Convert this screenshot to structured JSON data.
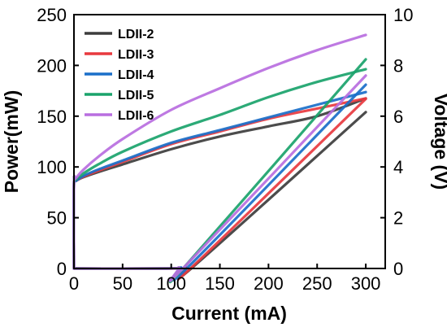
{
  "chart_data": {
    "type": "line",
    "xlabel": "Current (mA)",
    "ylabel": "Power(mW)",
    "y2label": "Voltage (V)",
    "xlim": [
      0,
      320
    ],
    "ylim": [
      0,
      250
    ],
    "y2lim": [
      0,
      10
    ],
    "xticks": [
      0,
      50,
      100,
      150,
      200,
      250,
      300
    ],
    "yticks": [
      0,
      50,
      100,
      150,
      200,
      250
    ],
    "y2ticks": [
      0,
      2,
      4,
      6,
      8,
      10
    ],
    "grid": false,
    "legend_position": "top-left",
    "series": [
      {
        "name": "LDII-2",
        "color": "#3d3d3d",
        "power": {
          "x": [
            0,
            100,
            115,
            123,
            300
          ],
          "y": [
            0,
            0,
            1,
            2,
            154
          ]
        },
        "voltage": {
          "x": [
            0,
            2,
            10,
            25,
            50,
            100,
            150,
            200,
            250,
            300
          ],
          "y": [
            3.35,
            3.45,
            3.6,
            3.8,
            4.1,
            4.7,
            5.2,
            5.6,
            6.0,
            6.7
          ]
        }
      },
      {
        "name": "LDII-3",
        "color": "#e8393f",
        "power": {
          "x": [
            0,
            100,
            115,
            122,
            300
          ],
          "y": [
            0,
            0,
            1,
            2,
            167
          ]
        },
        "voltage": {
          "x": [
            0,
            2,
            10,
            25,
            50,
            100,
            150,
            200,
            250,
            300
          ],
          "y": [
            3.35,
            3.45,
            3.62,
            3.85,
            4.2,
            4.9,
            5.4,
            5.9,
            6.3,
            6.7
          ]
        }
      },
      {
        "name": "LDII-4",
        "color": "#1a6fc9",
        "power": {
          "x": [
            0,
            95,
            110,
            118,
            300
          ],
          "y": [
            0,
            0,
            1,
            2,
            181
          ]
        },
        "voltage": {
          "x": [
            0,
            2,
            10,
            25,
            50,
            100,
            150,
            200,
            250,
            300
          ],
          "y": [
            3.35,
            3.45,
            3.65,
            3.9,
            4.25,
            4.95,
            5.45,
            5.95,
            6.45,
            6.95
          ]
        }
      },
      {
        "name": "LDII-5",
        "color": "#1aa36b",
        "power": {
          "x": [
            0,
            95,
            108,
            114,
            300
          ],
          "y": [
            0,
            0,
            1,
            2,
            206
          ]
        },
        "voltage": {
          "x": [
            0,
            2,
            10,
            25,
            50,
            100,
            150,
            200,
            250,
            300
          ],
          "y": [
            3.35,
            3.5,
            3.75,
            4.1,
            4.6,
            5.4,
            6.05,
            6.75,
            7.35,
            7.85
          ]
        }
      },
      {
        "name": "LDII-6",
        "color": "#b96ee0",
        "power": {
          "x": [
            0,
            95,
            108,
            114,
            300
          ],
          "y": [
            0,
            0,
            1,
            2,
            190
          ]
        },
        "voltage": {
          "x": [
            0,
            2,
            10,
            25,
            50,
            100,
            150,
            200,
            250,
            300
          ],
          "y": [
            3.35,
            3.55,
            3.9,
            4.4,
            5.1,
            6.25,
            7.1,
            7.9,
            8.6,
            9.2
          ]
        }
      }
    ]
  }
}
